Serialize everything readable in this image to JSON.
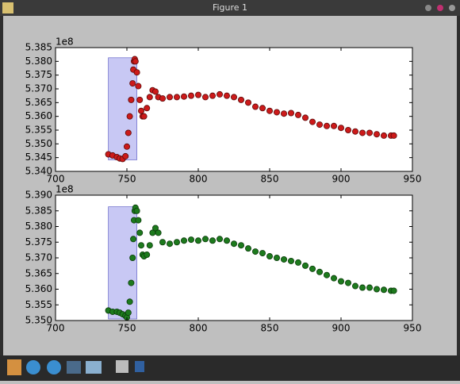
{
  "window": {
    "title": "Figure 1"
  },
  "chart_data": [
    {
      "type": "scatter",
      "offset_label": "1e8",
      "color": "#cc1a1a",
      "edge": "#5a0a0a",
      "x": [
        737,
        740,
        743,
        745,
        747,
        749,
        750,
        751,
        752,
        753,
        754,
        754.5,
        755,
        755.5,
        756,
        757,
        758,
        759,
        760,
        761,
        762,
        764,
        766,
        768,
        770,
        772,
        775,
        780,
        785,
        790,
        795,
        800,
        805,
        810,
        815,
        820,
        825,
        830,
        835,
        840,
        845,
        850,
        855,
        860,
        865,
        870,
        875,
        880,
        885,
        890,
        895,
        900,
        905,
        910,
        915,
        920,
        925,
        930,
        935,
        937
      ],
      "values": [
        5.3462,
        5.3458,
        5.3452,
        5.3447,
        5.3445,
        5.3455,
        5.349,
        5.354,
        5.36,
        5.366,
        5.372,
        5.377,
        5.38,
        5.3808,
        5.38,
        5.376,
        5.371,
        5.366,
        5.362,
        5.36,
        5.36,
        5.363,
        5.367,
        5.3695,
        5.369,
        5.367,
        5.3665,
        5.367,
        5.367,
        5.3672,
        5.3675,
        5.3678,
        5.367,
        5.3675,
        5.368,
        5.3675,
        5.367,
        5.366,
        5.365,
        5.3635,
        5.363,
        5.362,
        5.3615,
        5.361,
        5.3612,
        5.3605,
        5.3595,
        5.358,
        5.357,
        5.3565,
        5.3565,
        5.3558,
        5.355,
        5.3545,
        5.354,
        5.354,
        5.3535,
        5.353,
        5.353,
        5.353
      ],
      "span": {
        "x": [
          737,
          757
        ],
        "y": [
          5.3442,
          5.3813
        ],
        "color": "#c8c8f4"
      },
      "xlim": [
        700,
        950
      ],
      "xticks": [
        700,
        750,
        800,
        850,
        900,
        950
      ],
      "ylim": [
        5.34,
        5.385
      ],
      "yticks": [
        {
          "value": 5.34,
          "label": "5.340"
        },
        {
          "value": 5.345,
          "label": "5.345"
        },
        {
          "value": 5.35,
          "label": "5.350"
        },
        {
          "value": 5.355,
          "label": "5.355"
        },
        {
          "value": 5.36,
          "label": "5.360"
        },
        {
          "value": 5.365,
          "label": "5.365"
        },
        {
          "value": 5.37,
          "label": "5.370"
        },
        {
          "value": 5.375,
          "label": "5.375"
        },
        {
          "value": 5.38,
          "label": "5.380"
        },
        {
          "value": 5.385,
          "label": "5.385"
        }
      ]
    },
    {
      "type": "scatter",
      "offset_label": "1e8",
      "color": "#1d7a1d",
      "edge": "#0a3a0a",
      "x": [
        737,
        740,
        743,
        745,
        747,
        749,
        750,
        751,
        752,
        753,
        754,
        754.5,
        755,
        755.5,
        756,
        757,
        758,
        759,
        760,
        761,
        762,
        764,
        766,
        768,
        770,
        772,
        775,
        780,
        785,
        790,
        795,
        800,
        805,
        810,
        815,
        820,
        825,
        830,
        835,
        840,
        845,
        850,
        855,
        860,
        865,
        870,
        875,
        880,
        885,
        890,
        895,
        900,
        905,
        910,
        915,
        920,
        925,
        930,
        935,
        937
      ],
      "values": [
        5.3532,
        5.3528,
        5.3528,
        5.3525,
        5.352,
        5.3515,
        5.351,
        5.3525,
        5.356,
        5.362,
        5.37,
        5.376,
        5.382,
        5.385,
        5.386,
        5.385,
        5.382,
        5.378,
        5.374,
        5.371,
        5.3705,
        5.371,
        5.374,
        5.378,
        5.3795,
        5.378,
        5.375,
        5.3745,
        5.375,
        5.3755,
        5.3758,
        5.3755,
        5.376,
        5.3755,
        5.376,
        5.3755,
        5.3745,
        5.374,
        5.373,
        5.372,
        5.3715,
        5.3705,
        5.37,
        5.3695,
        5.369,
        5.3685,
        5.3675,
        5.3665,
        5.3655,
        5.3645,
        5.3635,
        5.3625,
        5.362,
        5.361,
        5.3605,
        5.3605,
        5.36,
        5.3598,
        5.3595,
        5.3595
      ],
      "span": {
        "x": [
          737,
          757
        ],
        "y": [
          5.3505,
          5.3863
        ],
        "color": "#c8c8f4"
      },
      "xlim": [
        700,
        950
      ],
      "xticks": [
        700,
        750,
        800,
        850,
        900,
        950
      ],
      "ylim": [
        5.35,
        5.39
      ],
      "yticks": [
        {
          "value": 5.35,
          "label": "5.350"
        },
        {
          "value": 5.355,
          "label": "5.355"
        },
        {
          "value": 5.36,
          "label": "5.360"
        },
        {
          "value": 5.365,
          "label": "5.365"
        },
        {
          "value": 5.37,
          "label": "5.370"
        },
        {
          "value": 5.375,
          "label": "5.375"
        },
        {
          "value": 5.38,
          "label": "5.380"
        },
        {
          "value": 5.385,
          "label": "5.385"
        },
        {
          "value": 5.39,
          "label": "5.390"
        }
      ]
    }
  ]
}
